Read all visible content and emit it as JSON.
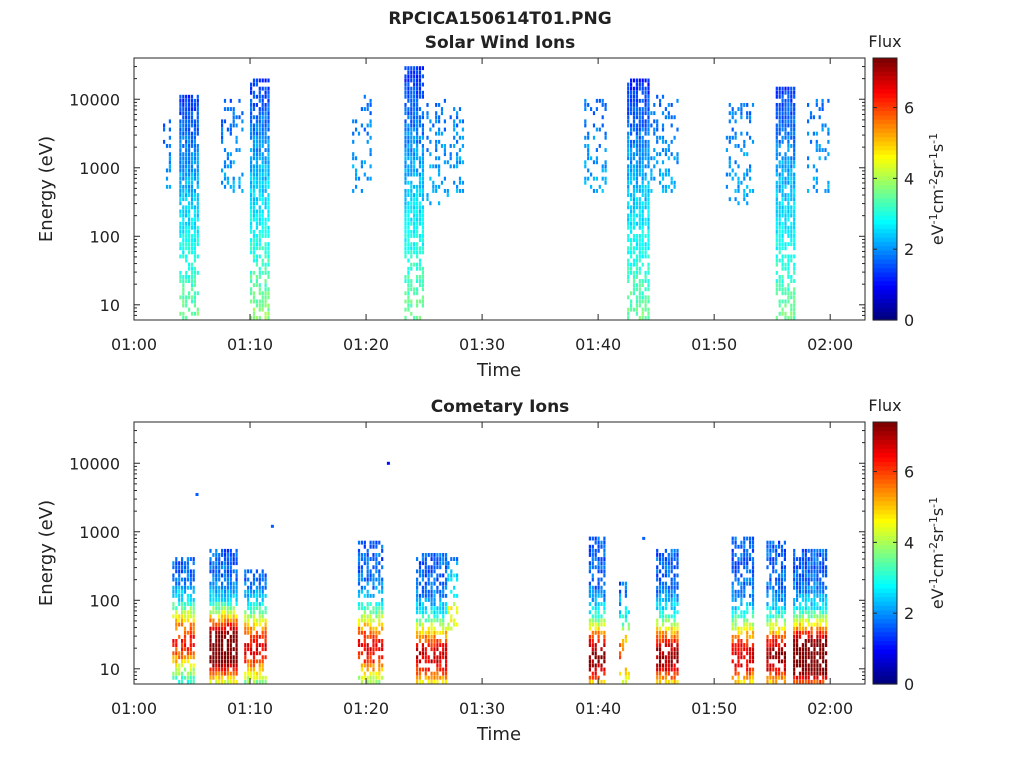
{
  "figure": {
    "title": "RPCICA150614T01.PNG"
  },
  "colorbar": {
    "label": "Flux",
    "unit_base": "eV",
    "unit_parts": [
      {
        "t": "eV",
        "sup": false
      },
      {
        "t": "-1",
        "sup": true
      },
      {
        "t": "cm",
        "sup": false
      },
      {
        "t": "-2",
        "sup": true
      },
      {
        "t": "sr",
        "sup": false
      },
      {
        "t": "-1",
        "sup": true
      },
      {
        "t": "s",
        "sup": false
      },
      {
        "t": "-1",
        "sup": true
      }
    ],
    "range": [
      0,
      7.4
    ],
    "ticks": [
      0,
      2,
      4,
      6
    ],
    "colormap": "jet"
  },
  "chart_data": [
    {
      "type": "heatmap",
      "title": "Solar Wind Ions",
      "xlabel": "Time",
      "ylabel": "Energy (eV)",
      "x_range_min": [
        60,
        123
      ],
      "y_range_eV": [
        6,
        40000
      ],
      "y_scale": "log",
      "x_ticks": [
        {
          "v": 60,
          "label": "01:00"
        },
        {
          "v": 70,
          "label": "01:10"
        },
        {
          "v": 80,
          "label": "01:20"
        },
        {
          "v": 90,
          "label": "01:30"
        },
        {
          "v": 100,
          "label": "01:40"
        },
        {
          "v": 110,
          "label": "01:50"
        },
        {
          "v": 120,
          "label": "02:00"
        }
      ],
      "y_ticks": [
        {
          "v": 10,
          "label": "10"
        },
        {
          "v": 100,
          "label": "100"
        },
        {
          "v": 1000,
          "label": "1000"
        },
        {
          "v": 10000,
          "label": "10000"
        }
      ],
      "bursts": [
        {
          "t0": 63.9,
          "t1": 65.6,
          "emin": 6,
          "emax": 12000,
          "peakE": 3000,
          "flux": 1.3,
          "lowFlux": 3.6,
          "density": 0.85
        },
        {
          "t0": 62.5,
          "t1": 63.2,
          "emin": 400,
          "emax": 6000,
          "peakE": 1500,
          "flux": 1.6,
          "lowFlux": 2.2,
          "density": 0.25
        },
        {
          "t0": 67.5,
          "t1": 69.3,
          "emin": 400,
          "emax": 10000,
          "peakE": 2000,
          "flux": 1.6,
          "lowFlux": 2.2,
          "density": 0.3
        },
        {
          "t0": 70.0,
          "t1": 71.6,
          "emin": 6,
          "emax": 20000,
          "peakE": 2000,
          "flux": 1.3,
          "lowFlux": 3.8,
          "density": 0.85
        },
        {
          "t0": 78.8,
          "t1": 80.5,
          "emin": 400,
          "emax": 12000,
          "peakE": 2000,
          "flux": 1.7,
          "lowFlux": 2.2,
          "density": 0.25
        },
        {
          "t0": 83.3,
          "t1": 85.0,
          "emin": 6,
          "emax": 30000,
          "peakE": 3000,
          "flux": 1.2,
          "lowFlux": 3.6,
          "density": 0.85
        },
        {
          "t0": 85.2,
          "t1": 87.3,
          "emin": 300,
          "emax": 10000,
          "peakE": 2000,
          "flux": 1.7,
          "lowFlux": 2.2,
          "density": 0.3
        },
        {
          "t0": 87.5,
          "t1": 88.3,
          "emin": 400,
          "emax": 8000,
          "peakE": 2000,
          "flux": 1.8,
          "lowFlux": 2.2,
          "density": 0.3
        },
        {
          "t0": 98.8,
          "t1": 100.8,
          "emin": 400,
          "emax": 10000,
          "peakE": 2000,
          "flux": 1.7,
          "lowFlux": 2.2,
          "density": 0.3
        },
        {
          "t0": 102.5,
          "t1": 104.3,
          "emin": 6,
          "emax": 20000,
          "peakE": 3000,
          "flux": 1.2,
          "lowFlux": 3.6,
          "density": 0.85
        },
        {
          "t0": 104.5,
          "t1": 107.0,
          "emin": 400,
          "emax": 12000,
          "peakE": 2000,
          "flux": 1.7,
          "lowFlux": 2.2,
          "density": 0.3
        },
        {
          "t0": 111.0,
          "t1": 113.5,
          "emin": 300,
          "emax": 10000,
          "peakE": 2000,
          "flux": 1.7,
          "lowFlux": 2.2,
          "density": 0.3
        },
        {
          "t0": 115.3,
          "t1": 117.0,
          "emin": 6,
          "emax": 15000,
          "peakE": 3000,
          "flux": 1.3,
          "lowFlux": 3.6,
          "density": 0.85
        },
        {
          "t0": 118.0,
          "t1": 120.0,
          "emin": 400,
          "emax": 10000,
          "peakE": 2000,
          "flux": 1.7,
          "lowFlux": 2.2,
          "density": 0.3
        }
      ]
    },
    {
      "type": "heatmap",
      "title": "Cometary Ions",
      "xlabel": "Time",
      "ylabel": "Energy (eV)",
      "x_range_min": [
        60,
        123
      ],
      "y_range_eV": [
        6,
        40000
      ],
      "y_scale": "log",
      "x_ticks": [
        {
          "v": 60,
          "label": "01:00"
        },
        {
          "v": 70,
          "label": "01:10"
        },
        {
          "v": 80,
          "label": "01:20"
        },
        {
          "v": 90,
          "label": "01:30"
        },
        {
          "v": 100,
          "label": "01:40"
        },
        {
          "v": 110,
          "label": "01:50"
        },
        {
          "v": 120,
          "label": "02:00"
        }
      ],
      "y_ticks": [
        {
          "v": 10,
          "label": "10"
        },
        {
          "v": 100,
          "label": "100"
        },
        {
          "v": 1000,
          "label": "1000"
        },
        {
          "v": 10000,
          "label": "10000"
        }
      ],
      "bursts": [
        {
          "t0": 63.3,
          "t1": 65.2,
          "emin": 6,
          "emax": 400,
          "peakE": 25,
          "flux": 4.6,
          "density": 0.75
        },
        {
          "t0": 66.5,
          "t1": 68.8,
          "emin": 6,
          "emax": 600,
          "peakE": 20,
          "flux": 6.8,
          "density": 0.85
        },
        {
          "t0": 69.5,
          "t1": 71.5,
          "emin": 6,
          "emax": 300,
          "peakE": 20,
          "flux": 5.0,
          "density": 0.75
        },
        {
          "t0": 79.3,
          "t1": 81.5,
          "emin": 6,
          "emax": 700,
          "peakE": 20,
          "flux": 5.0,
          "density": 0.7
        },
        {
          "t0": 84.3,
          "t1": 87.0,
          "emin": 6,
          "emax": 500,
          "peakE": 15,
          "flux": 5.2,
          "density": 0.75
        },
        {
          "t0": 87.0,
          "t1": 88.0,
          "emin": 30,
          "emax": 400,
          "peakE": 60,
          "flux": 3.0,
          "density": 0.4
        },
        {
          "t0": 99.2,
          "t1": 100.6,
          "emin": 6,
          "emax": 900,
          "peakE": 15,
          "flux": 5.8,
          "density": 0.7
        },
        {
          "t0": 101.8,
          "t1": 102.6,
          "emin": 6,
          "emax": 200,
          "peakE": 15,
          "flux": 4.4,
          "density": 0.45
        },
        {
          "t0": 105.0,
          "t1": 106.8,
          "emin": 6,
          "emax": 600,
          "peakE": 15,
          "flux": 5.6,
          "density": 0.75
        },
        {
          "t0": 111.5,
          "t1": 113.3,
          "emin": 6,
          "emax": 800,
          "peakE": 15,
          "flux": 5.2,
          "density": 0.7
        },
        {
          "t0": 114.5,
          "t1": 116.2,
          "emin": 6,
          "emax": 700,
          "peakE": 15,
          "flux": 5.6,
          "density": 0.75
        },
        {
          "t0": 116.8,
          "t1": 119.8,
          "emin": 6,
          "emax": 600,
          "peakE": 15,
          "flux": 7.0,
          "density": 0.85
        }
      ],
      "points": [
        {
          "t": 65.3,
          "e": 3500,
          "flux": 1.6
        },
        {
          "t": 81.8,
          "e": 10000,
          "flux": 1.0
        },
        {
          "t": 71.8,
          "e": 1200,
          "flux": 1.6
        },
        {
          "t": 103.8,
          "e": 800,
          "flux": 1.6
        }
      ]
    }
  ]
}
